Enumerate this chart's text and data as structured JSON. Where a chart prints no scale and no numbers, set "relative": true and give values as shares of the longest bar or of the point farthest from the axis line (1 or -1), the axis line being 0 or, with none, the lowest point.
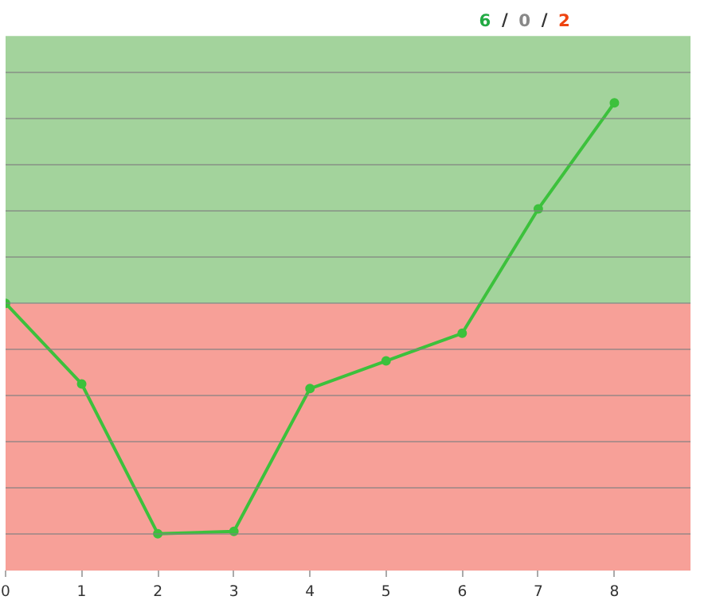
{
  "chart_data": {
    "type": "line",
    "relative": true,
    "x": [
      0,
      1,
      2,
      3,
      4,
      5,
      6,
      7,
      8
    ],
    "series": [
      {
        "color": "#3cc13c",
        "values": [
          0,
          -0.35,
          -1,
          -0.99,
          -0.37,
          -0.25,
          -0.13,
          0.41,
          0.87
        ]
      }
    ],
    "xlim": [
      0,
      9
    ],
    "xticks": [
      0,
      1,
      2,
      3,
      4,
      5,
      6,
      7,
      8
    ],
    "bands": [
      {
        "axis": "y",
        "from": 0,
        "to": 1.16,
        "color": "#a3d39c"
      },
      {
        "axis": "y",
        "from": -1.16,
        "to": 0,
        "color": "#f7a098"
      }
    ],
    "annotations": [
      "6",
      "/",
      "0",
      "/",
      "2"
    ],
    "grid": "y",
    "marker": "circle",
    "line_style": "solid",
    "tick_labels": "x"
  }
}
